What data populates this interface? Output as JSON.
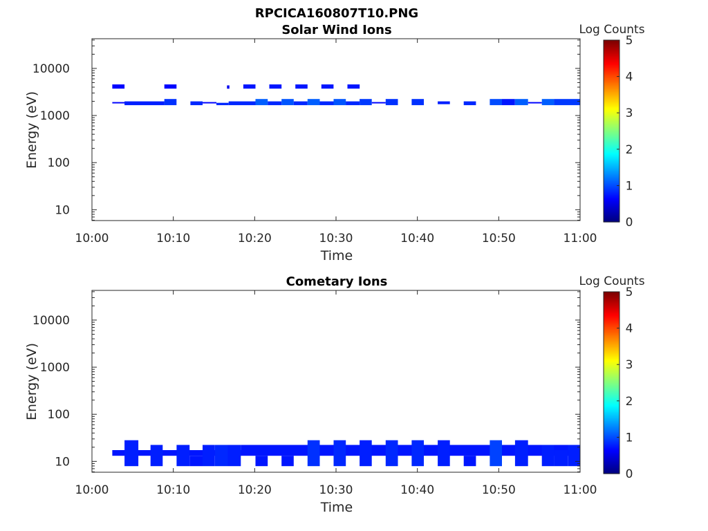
{
  "figure": {
    "title": "RPCICA160807T10.PNG"
  },
  "colorbar": {
    "label": "Log Counts",
    "ticks": [
      "0",
      "1",
      "2",
      "3",
      "4",
      "5"
    ],
    "range": [
      0,
      5
    ],
    "colormap": "jet"
  },
  "chart_data": [
    {
      "type": "heatmap",
      "title": "Solar Wind Ions",
      "xlabel": "Time",
      "ylabel": "Energy (eV)",
      "x_ticks": [
        "10:00",
        "10:10",
        "10:20",
        "10:30",
        "10:40",
        "10:50",
        "11:00"
      ],
      "y_ticks": [
        "10",
        "100",
        "1000",
        "10000"
      ],
      "xlim_minutes": [
        0,
        60
      ],
      "ylim_log10": [
        0.77,
        4.63
      ],
      "yscale": "log",
      "grid": false,
      "cells": [
        {
          "t0": 2.5,
          "t1": 4.0,
          "e0": 3.57,
          "e1": 3.66,
          "v": 0.1
        },
        {
          "t0": 8.9,
          "t1": 10.4,
          "e0": 3.57,
          "e1": 3.66,
          "v": 0.1
        },
        {
          "t0": 16.6,
          "t1": 16.9,
          "e0": 3.57,
          "e1": 3.64,
          "v": 0.0
        },
        {
          "t0": 18.6,
          "t1": 20.1,
          "e0": 3.57,
          "e1": 3.66,
          "v": 0.2
        },
        {
          "t0": 21.8,
          "t1": 23.3,
          "e0": 3.57,
          "e1": 3.66,
          "v": 0.2
        },
        {
          "t0": 25.0,
          "t1": 26.5,
          "e0": 3.57,
          "e1": 3.66,
          "v": 0.2
        },
        {
          "t0": 28.2,
          "t1": 29.7,
          "e0": 3.57,
          "e1": 3.66,
          "v": 0.2
        },
        {
          "t0": 31.4,
          "t1": 32.9,
          "e0": 3.57,
          "e1": 3.66,
          "v": 0.2
        },
        {
          "t0": 2.5,
          "t1": 8.0,
          "e0": 3.255,
          "e1": 3.285,
          "v": 0.1
        },
        {
          "t0": 4.0,
          "t1": 8.9,
          "e0": 3.22,
          "e1": 3.3,
          "v": 0.25
        },
        {
          "t0": 8.9,
          "t1": 10.4,
          "e0": 3.22,
          "e1": 3.35,
          "v": 0.35
        },
        {
          "t0": 12.1,
          "t1": 13.6,
          "e0": 3.22,
          "e1": 3.3,
          "v": 0.3
        },
        {
          "t0": 13.6,
          "t1": 15.3,
          "e0": 3.255,
          "e1": 3.285,
          "v": 0.1
        },
        {
          "t0": 15.3,
          "t1": 16.8,
          "e0": 3.22,
          "e1": 3.27,
          "v": 0.3
        },
        {
          "t0": 16.8,
          "t1": 20.1,
          "e0": 3.22,
          "e1": 3.3,
          "v": 0.3
        },
        {
          "t0": 20.1,
          "t1": 21.6,
          "e0": 3.22,
          "e1": 3.35,
          "v": 0.6
        },
        {
          "t0": 21.6,
          "t1": 23.3,
          "e0": 3.22,
          "e1": 3.3,
          "v": 0.3
        },
        {
          "t0": 23.3,
          "t1": 24.8,
          "e0": 3.22,
          "e1": 3.35,
          "v": 0.55
        },
        {
          "t0": 24.8,
          "t1": 26.5,
          "e0": 3.22,
          "e1": 3.3,
          "v": 0.3
        },
        {
          "t0": 26.5,
          "t1": 28.0,
          "e0": 3.22,
          "e1": 3.35,
          "v": 0.6
        },
        {
          "t0": 28.0,
          "t1": 29.7,
          "e0": 3.22,
          "e1": 3.3,
          "v": 0.3
        },
        {
          "t0": 29.7,
          "t1": 31.2,
          "e0": 3.22,
          "e1": 3.35,
          "v": 0.55
        },
        {
          "t0": 31.2,
          "t1": 32.9,
          "e0": 3.22,
          "e1": 3.3,
          "v": 0.3
        },
        {
          "t0": 32.9,
          "t1": 34.4,
          "e0": 3.22,
          "e1": 3.35,
          "v": 0.4
        },
        {
          "t0": 34.4,
          "t1": 36.1,
          "e0": 3.255,
          "e1": 3.285,
          "v": 0.1
        },
        {
          "t0": 36.1,
          "t1": 37.6,
          "e0": 3.22,
          "e1": 3.35,
          "v": 0.35
        },
        {
          "t0": 39.3,
          "t1": 40.8,
          "e0": 3.22,
          "e1": 3.35,
          "v": 0.35
        },
        {
          "t0": 42.5,
          "t1": 44.0,
          "e0": 3.24,
          "e1": 3.3,
          "v": 0.25
        },
        {
          "t0": 45.7,
          "t1": 47.2,
          "e0": 3.22,
          "e1": 3.3,
          "v": 0.3
        },
        {
          "t0": 48.9,
          "t1": 50.4,
          "e0": 3.22,
          "e1": 3.35,
          "v": 0.5
        },
        {
          "t0": 50.4,
          "t1": 52.0,
          "e0": 3.22,
          "e1": 3.35,
          "v": 0.2
        },
        {
          "t0": 52.0,
          "t1": 53.6,
          "e0": 3.22,
          "e1": 3.35,
          "v": 0.6
        },
        {
          "t0": 53.6,
          "t1": 55.3,
          "e0": 3.255,
          "e1": 3.285,
          "v": 0.1
        },
        {
          "t0": 55.3,
          "t1": 56.8,
          "e0": 3.22,
          "e1": 3.35,
          "v": 0.6
        },
        {
          "t0": 56.8,
          "t1": 60.0,
          "e0": 3.22,
          "e1": 3.35,
          "v": 0.4
        }
      ]
    },
    {
      "type": "heatmap",
      "title": "Cometary Ions",
      "xlabel": "Time",
      "ylabel": "Energy (eV)",
      "x_ticks": [
        "10:00",
        "10:10",
        "10:20",
        "10:30",
        "10:40",
        "10:50",
        "11:00"
      ],
      "y_ticks": [
        "10",
        "100",
        "1000",
        "10000"
      ],
      "xlim_minutes": [
        0,
        60
      ],
      "ylim_log10": [
        0.77,
        4.63
      ],
      "yscale": "log",
      "grid": false,
      "cells": [
        {
          "t0": 2.5,
          "t1": 60.0,
          "e0": 1.12,
          "e1": 1.24,
          "v": 0.2
        },
        {
          "t0": 4.0,
          "t1": 5.7,
          "e0": 0.9,
          "e1": 1.45,
          "v": 0.25
        },
        {
          "t0": 7.2,
          "t1": 8.7,
          "e0": 0.9,
          "e1": 1.35,
          "v": 0.25
        },
        {
          "t0": 10.4,
          "t1": 12.0,
          "e0": 0.9,
          "e1": 1.35,
          "v": 0.25
        },
        {
          "t0": 12.0,
          "t1": 13.6,
          "e0": 0.9,
          "e1": 1.12,
          "v": 0.2
        },
        {
          "t0": 13.6,
          "t1": 15.1,
          "e0": 0.9,
          "e1": 1.35,
          "v": 0.25
        },
        {
          "t0": 15.1,
          "t1": 16.7,
          "e0": 0.9,
          "e1": 1.35,
          "v": 0.3
        },
        {
          "t0": 16.7,
          "t1": 18.3,
          "e0": 0.9,
          "e1": 1.35,
          "v": 0.25
        },
        {
          "t0": 18.3,
          "t1": 60.0,
          "e0": 1.24,
          "e1": 1.35,
          "v": 0.2
        },
        {
          "t0": 20.1,
          "t1": 21.6,
          "e0": 0.9,
          "e1": 1.12,
          "v": 0.2
        },
        {
          "t0": 23.3,
          "t1": 24.8,
          "e0": 0.9,
          "e1": 1.12,
          "v": 0.2
        },
        {
          "t0": 26.5,
          "t1": 28.0,
          "e0": 0.9,
          "e1": 1.45,
          "v": 0.35
        },
        {
          "t0": 29.7,
          "t1": 31.2,
          "e0": 0.9,
          "e1": 1.45,
          "v": 0.3
        },
        {
          "t0": 32.9,
          "t1": 34.4,
          "e0": 0.9,
          "e1": 1.45,
          "v": 0.25
        },
        {
          "t0": 36.1,
          "t1": 37.6,
          "e0": 0.9,
          "e1": 1.45,
          "v": 0.3
        },
        {
          "t0": 39.3,
          "t1": 40.8,
          "e0": 0.9,
          "e1": 1.45,
          "v": 0.3
        },
        {
          "t0": 42.5,
          "t1": 44.0,
          "e0": 0.9,
          "e1": 1.45,
          "v": 0.25
        },
        {
          "t0": 45.7,
          "t1": 47.2,
          "e0": 0.9,
          "e1": 1.12,
          "v": 0.2
        },
        {
          "t0": 48.9,
          "t1": 50.4,
          "e0": 0.9,
          "e1": 1.45,
          "v": 0.45
        },
        {
          "t0": 52.0,
          "t1": 53.6,
          "e0": 0.9,
          "e1": 1.45,
          "v": 0.25
        },
        {
          "t0": 55.3,
          "t1": 56.8,
          "e0": 0.9,
          "e1": 1.35,
          "v": 0.25
        },
        {
          "t0": 56.8,
          "t1": 58.5,
          "e0": 0.9,
          "e1": 1.24,
          "v": 0.25
        },
        {
          "t0": 58.5,
          "t1": 60.0,
          "e0": 0.9,
          "e1": 1.35,
          "v": 0.25
        }
      ]
    }
  ]
}
